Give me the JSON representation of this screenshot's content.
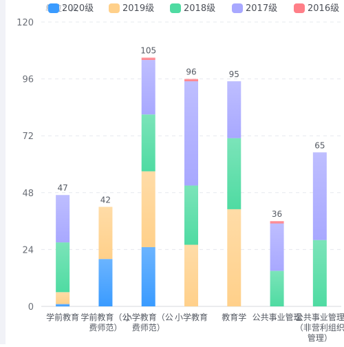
{
  "chart_data": {
    "type": "bar",
    "stacked": true,
    "unit_label": "单位：人",
    "categories": [
      "学前教育",
      "学前教育（公费师范）",
      "小学教育（公费师范）",
      "小学教育",
      "教育学",
      "公共事业管理",
      "公共事业管理（非营利组织管理）"
    ],
    "series": [
      {
        "name": "2020级",
        "color": "#3a9bff",
        "values": [
          1,
          20,
          25,
          0,
          0,
          0,
          0
        ]
      },
      {
        "name": "2019级",
        "color": "#ffd08a",
        "values": [
          5,
          22,
          32,
          26,
          41,
          0,
          0
        ]
      },
      {
        "name": "2018级",
        "color": "#4fdba2",
        "values": [
          21,
          0,
          24,
          25,
          30,
          15,
          28
        ]
      },
      {
        "name": "2017级",
        "color": "#a8a8ff",
        "values": [
          20,
          0,
          23,
          44,
          24,
          20,
          37
        ]
      },
      {
        "name": "2016级",
        "color": "#ff7f88",
        "values": [
          0,
          0,
          1,
          1,
          0,
          1,
          0
        ]
      }
    ],
    "totals": [
      47,
      42,
      105,
      96,
      95,
      36,
      65
    ],
    "ylim": [
      0,
      120
    ],
    "yticks": [
      0,
      24,
      48,
      72,
      96,
      120
    ],
    "grid": true,
    "legend_position": "top"
  }
}
